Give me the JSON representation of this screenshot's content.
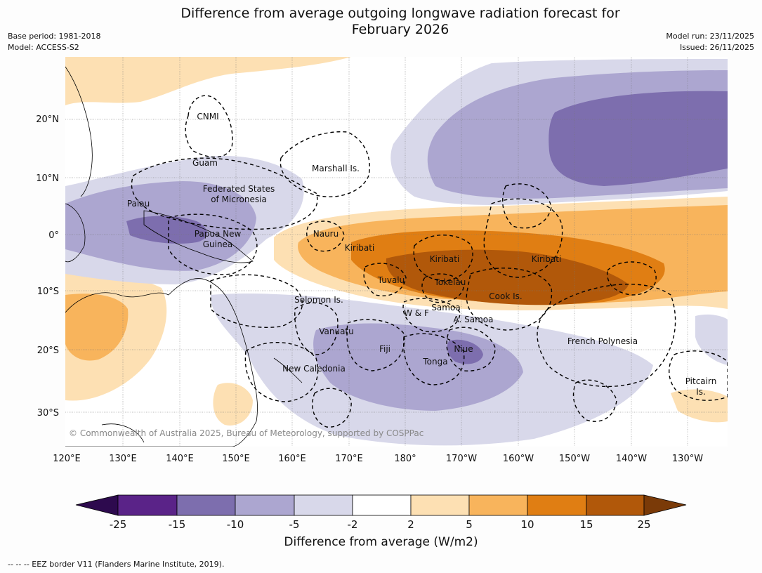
{
  "title_line1": "Difference from average outgoing longwave radiation forecast for",
  "title_line2": "February 2026",
  "base_period": "Base period: 1981-2018",
  "model": "Model: ACCESS-S2",
  "model_run": "Model run: 23/11/2025",
  "issued": "Issued: 26/11/2025",
  "lat_labels": [
    "20°N",
    "10°N",
    "0°",
    "10°S",
    "20°S",
    "30°S"
  ],
  "lon_labels": [
    "120°E",
    "130°E",
    "140°E",
    "150°E",
    "160°E",
    "170°E",
    "180°",
    "170°W",
    "160°W",
    "150°W",
    "140°W",
    "130°W"
  ],
  "places": [
    "CNMI",
    "Guam",
    "Marshall Is.",
    "Federated States",
    "of Micronesia",
    "Palau",
    "Papua New",
    "Guinea",
    "Nauru",
    "Kiribati",
    "Kiribati",
    "Kiribati",
    "Tuvalu",
    "Tokelau",
    "Cook Is.",
    "Solomon Is.",
    "W & F",
    "Samoa",
    "A. Samoa",
    "Vanuatu",
    "Fiji",
    "Niue",
    "Tonga",
    "French Polynesia",
    "New Caledonia",
    "Pitcairn",
    "Is."
  ],
  "copyright": "© Commonwealth of Australia 2025, Bureau of Meteorology, supported by COSPPac",
  "colorbar": {
    "ticks": [
      "-25",
      "-15",
      "-10",
      "-5",
      "-2",
      "2",
      "5",
      "10",
      "15",
      "25"
    ],
    "colors": [
      "#2d0a4e",
      "#5a2388",
      "#7d6eae",
      "#aca6d0",
      "#d8d8ea",
      "#ffffff",
      "#fde0b3",
      "#f8b45c",
      "#e07e13",
      "#b1580a",
      "#7a3a08"
    ],
    "title": "Difference from average (W/m2)"
  },
  "footnote": "--  --  -- EEZ border V11 (Flanders Marine Institute, 2019).",
  "colors": {
    "pos_light": "#fde0b3",
    "pos_med": "#f8b45c",
    "pos_strong": "#e07e13",
    "pos_max": "#b1580a",
    "neg_light": "#d8d8ea",
    "neg_med": "#aca6d0",
    "neg_strong": "#7d6eae"
  }
}
